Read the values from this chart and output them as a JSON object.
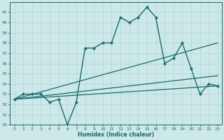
{
  "xlabel": "Humidex (Indice chaleur)",
  "background_color": "#cce8e8",
  "grid_color": "#b0d4d4",
  "line_color": "#1a6b6b",
  "xlim": [
    -0.5,
    23.5
  ],
  "ylim": [
    30,
    42
  ],
  "yticks": [
    30,
    31,
    32,
    33,
    34,
    35,
    36,
    37,
    38,
    39,
    40,
    41
  ],
  "xticks": [
    0,
    1,
    2,
    3,
    4,
    5,
    6,
    7,
    8,
    9,
    10,
    11,
    12,
    13,
    14,
    15,
    16,
    17,
    18,
    19,
    20,
    21,
    22,
    23
  ],
  "series": [
    {
      "x": [
        0,
        1,
        2,
        3,
        4,
        5,
        6,
        7,
        8,
        9,
        10,
        11,
        12,
        13,
        14,
        15,
        16,
        17,
        18,
        19,
        20,
        21,
        22,
        23
      ],
      "y": [
        32.5,
        33.0,
        33.0,
        33.0,
        32.2,
        32.5,
        30.0,
        32.2,
        37.5,
        37.5,
        38.0,
        38.0,
        40.5,
        40.0,
        40.5,
        41.5,
        40.5,
        36.0,
        36.5,
        38.0,
        35.5,
        33.0,
        34.0,
        33.8
      ],
      "marker": "P",
      "markersize": 2.5,
      "linewidth": 1.0
    },
    {
      "x": [
        0,
        23
      ],
      "y": [
        32.5,
        38.0
      ],
      "marker": null,
      "markersize": 0,
      "linewidth": 0.9
    },
    {
      "x": [
        0,
        23
      ],
      "y": [
        32.5,
        34.8
      ],
      "marker": null,
      "markersize": 0,
      "linewidth": 0.9
    },
    {
      "x": [
        0,
        23
      ],
      "y": [
        32.5,
        33.8
      ],
      "marker": null,
      "markersize": 0,
      "linewidth": 0.9
    }
  ]
}
